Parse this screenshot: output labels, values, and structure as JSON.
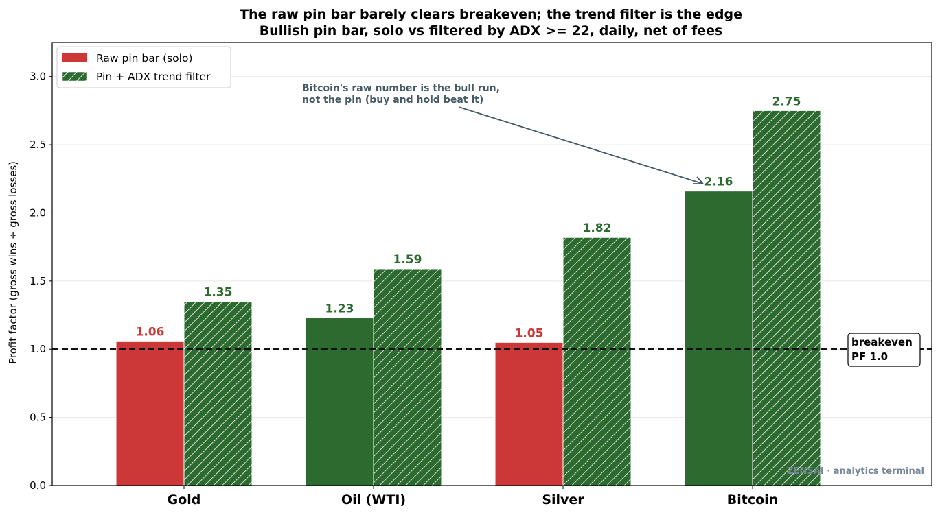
{
  "title_line1": "The raw pin bar barely clears breakeven; the trend filter is the edge",
  "title_line2": "Bullish pin bar, solo vs filtered by ADX >= 22, daily, net of fees",
  "chart_data": {
    "type": "bar",
    "title": "The raw pin bar barely clears breakeven; the trend filter is the edge",
    "subtitle": "Bullish pin bar, solo vs filtered by ADX >= 22, daily, net of fees",
    "categories": [
      "Gold",
      "Oil (WTI)",
      "Silver",
      "Bitcoin"
    ],
    "series": [
      {
        "name": "Raw pin bar (solo)",
        "values": [
          1.06,
          1.23,
          1.05,
          2.16
        ],
        "labels": [
          "1.06",
          "1.23",
          "1.05",
          "2.16"
        ]
      },
      {
        "name": "Pin + ADX trend filter",
        "values": [
          1.35,
          1.59,
          1.82,
          2.75
        ],
        "labels": [
          "1.35",
          "1.59",
          "1.82",
          "2.75"
        ],
        "pattern": "hatched"
      }
    ],
    "xlabel": "",
    "ylabel": "Profit factor (gross wins ÷ gross losses)",
    "ylim": [
      0,
      3.25
    ],
    "yticks": [
      "0.0",
      "0.5",
      "1.0",
      "1.5",
      "2.0",
      "2.5",
      "3.0"
    ],
    "grid": "horizontal",
    "legend_position": "top-left",
    "reference_line": {
      "value": 1.0,
      "label_line1": "breakeven",
      "label_line2": "PF 1.0",
      "style": "dashed"
    },
    "annotation": {
      "line1": "Bitcoin's raw number is the bull run,",
      "line2": "not the pin (buy and hold beat it)",
      "points_to": "Bitcoin raw pin bar"
    },
    "colors": {
      "red": "#cc3838",
      "green": "#2d6a2f",
      "annotation": "#455a64",
      "watermark": "#778899"
    },
    "bar_colors_rule": "raw bars are red when PF < 1.1, green otherwise; filtered bars are green hatched"
  },
  "watermark": "ZENSAI · analytics terminal"
}
